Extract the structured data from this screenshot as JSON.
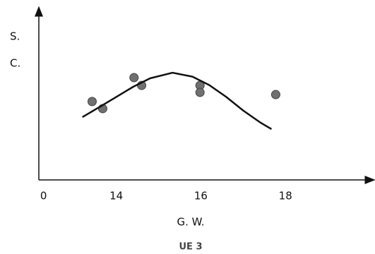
{
  "chart_data": {
    "type": "scatter",
    "ylabel_lines": [
      "S.",
      "C."
    ],
    "xlabel": "G. W.",
    "caption": "UE 3",
    "xlim": [
      12.17,
      20
    ],
    "ylim": [
      0,
      10
    ],
    "xticks": [
      {
        "value": 12.28,
        "label": "0"
      },
      14,
      16,
      18
    ],
    "series": [
      {
        "kind": "points",
        "color": "#707070",
        "x": [
          13.43,
          13.68,
          14.42,
          14.6,
          15.98,
          15.98,
          17.77
        ],
        "values": [
          4.63,
          4.21,
          6.04,
          5.58,
          5.58,
          5.17,
          5.04
        ]
      },
      {
        "kind": "curve",
        "color": "#111111",
        "x": [
          13.2,
          13.6,
          14.0,
          14.4,
          14.8,
          15.33,
          15.8,
          16.2,
          16.6,
          17.0,
          17.4,
          17.67
        ],
        "values": [
          3.71,
          4.3,
          4.9,
          5.5,
          6.0,
          6.33,
          6.1,
          5.6,
          4.9,
          4.1,
          3.4,
          3.0
        ]
      }
    ]
  }
}
